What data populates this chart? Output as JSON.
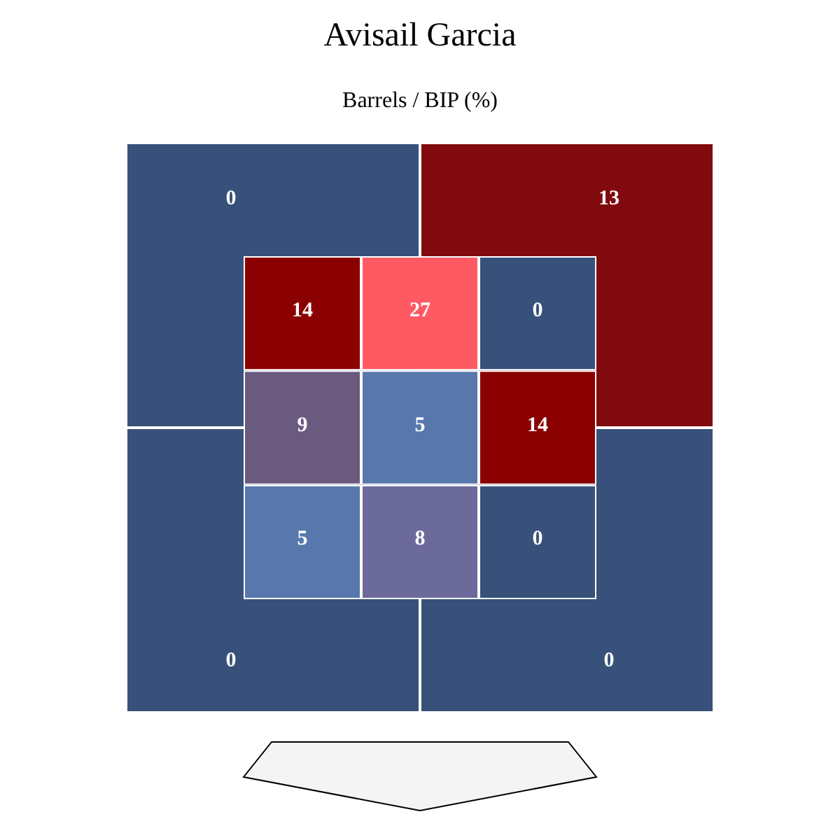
{
  "chart_data": [
    {
      "type": "heatmap",
      "title": "Avisail Garcia",
      "subtitle": "Barrels / BIP (%)",
      "categories": [
        null,
        null
      ],
      "y_categories": [
        null,
        null
      ],
      "cells": [
        [
          0,
          13
        ],
        [
          0,
          0
        ]
      ],
      "colors": [
        "#37517a",
        "#800a0e",
        "#37517a",
        "#37517a"
      ],
      "data_labels": true
    },
    {
      "type": "heatmap",
      "categories": [
        null,
        null,
        null
      ],
      "y_categories": [
        null,
        null,
        null
      ],
      "cells": [
        [
          14,
          27,
          0
        ],
        [
          9,
          5,
          14
        ],
        [
          5,
          8,
          0
        ]
      ],
      "colors": [
        "#8b0000",
        "#ff5a64",
        "#37517a",
        "#6b5a80",
        "#5878ad",
        "#8b0000",
        "#5878ad",
        "#6b6a9a",
        "#37517a"
      ],
      "data_labels": true
    }
  ]
}
